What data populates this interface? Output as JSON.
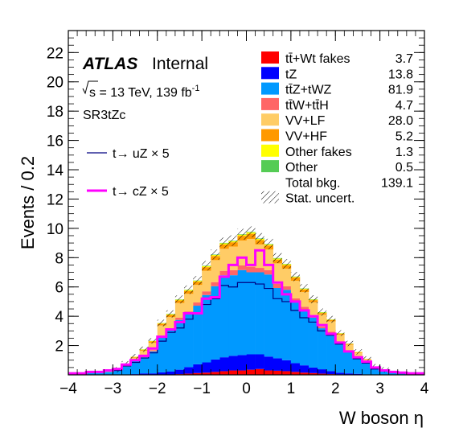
{
  "chart_data": {
    "type": "bar",
    "stacked": true,
    "xlabel": "W boson  η",
    "ylabel": "Events / 0.2",
    "xlim": [
      -4,
      4
    ],
    "ylim": [
      0,
      23.5
    ],
    "x_ticks": [
      "−4",
      "−3",
      "−2",
      "−1",
      "0",
      "1",
      "2",
      "3",
      "4"
    ],
    "y_ticks": [
      "2",
      "4",
      "6",
      "8",
      "10",
      "12",
      "14",
      "16",
      "18",
      "20",
      "22"
    ],
    "bin_edges": [
      -4.0,
      -3.8,
      -3.6,
      -3.4,
      -3.2,
      -3.0,
      -2.8,
      -2.6,
      -2.4,
      -2.2,
      -2.0,
      -1.8,
      -1.6,
      -1.4,
      -1.2,
      -1.0,
      -0.8,
      -0.6,
      -0.4,
      -0.2,
      0.0,
      0.2,
      0.4,
      0.6,
      0.8,
      1.0,
      1.2,
      1.4,
      1.6,
      1.8,
      2.0,
      2.2,
      2.4,
      2.6,
      2.8,
      3.0,
      3.2,
      3.4,
      3.6,
      3.8,
      4.0
    ],
    "series": [
      {
        "name": "tt̄+Wt fakes",
        "color": "#ff0000",
        "yield": "3.7",
        "values": [
          0,
          0,
          0,
          0,
          0,
          0,
          0,
          0,
          0,
          0,
          0.02,
          0.02,
          0.05,
          0.08,
          0.12,
          0.15,
          0.2,
          0.25,
          0.3,
          0.3,
          0.35,
          0.4,
          0.3,
          0.28,
          0.25,
          0.2,
          0.15,
          0.12,
          0.08,
          0.05,
          0.03,
          0.02,
          0.02,
          0,
          0,
          0,
          0,
          0,
          0,
          0
        ]
      },
      {
        "name": "tZ",
        "color": "#0000ff",
        "yield": "13.8",
        "values": [
          0,
          0,
          0,
          0,
          0,
          0,
          0.02,
          0.05,
          0.1,
          0.1,
          0.15,
          0.2,
          0.3,
          0.45,
          0.6,
          0.7,
          0.85,
          0.95,
          1.0,
          1.05,
          1.05,
          1.0,
          0.95,
          0.85,
          0.75,
          0.6,
          0.5,
          0.38,
          0.3,
          0.2,
          0.12,
          0.08,
          0.05,
          0.03,
          0.02,
          0,
          0,
          0,
          0,
          0
        ]
      },
      {
        "name": "tt̄Z+tWZ",
        "color": "#0099ff",
        "yield": "81.9",
        "values": [
          0.1,
          0.08,
          0.12,
          0.15,
          0.2,
          0.3,
          0.55,
          0.9,
          1.1,
          1.5,
          2.4,
          2.8,
          3.4,
          3.6,
          4.0,
          4.6,
          5.0,
          5.6,
          5.5,
          5.8,
          5.6,
          5.6,
          5.6,
          4.8,
          4.8,
          4.2,
          3.8,
          3.4,
          2.8,
          2.6,
          2.0,
          1.5,
          1.1,
          0.8,
          0.4,
          0.3,
          0.15,
          0.12,
          0.08,
          0.1
        ]
      },
      {
        "name": "tt̄W+tt̄H",
        "color": "#ff6666",
        "yield": "4.7",
        "values": [
          0,
          0,
          0,
          0,
          0,
          0,
          0.02,
          0.03,
          0.05,
          0.08,
          0.1,
          0.12,
          0.15,
          0.2,
          0.22,
          0.25,
          0.28,
          0.3,
          0.35,
          0.32,
          0.38,
          0.3,
          0.3,
          0.28,
          0.25,
          0.22,
          0.2,
          0.15,
          0.12,
          0.1,
          0.08,
          0.06,
          0.04,
          0.03,
          0.02,
          0,
          0,
          0,
          0,
          0
        ]
      },
      {
        "name": "VV+LF",
        "color": "#ffcc66",
        "yield": "28.0",
        "values": [
          0.05,
          0.05,
          0.05,
          0.05,
          0.05,
          0.05,
          0.15,
          0.2,
          0.4,
          0.5,
          0.7,
          0.8,
          1.0,
          1.2,
          1.2,
          1.4,
          1.5,
          1.5,
          1.6,
          1.7,
          1.9,
          1.6,
          1.4,
          1.4,
          1.2,
          1.2,
          1.0,
          0.9,
          0.8,
          0.7,
          0.5,
          0.4,
          0.3,
          0.2,
          0.1,
          0.05,
          0.05,
          0.05,
          0.05,
          0.05
        ]
      },
      {
        "name": "VV+HF",
        "color": "#ff9900",
        "yield": "5.2",
        "values": [
          0,
          0,
          0,
          0,
          0,
          0,
          0.02,
          0.04,
          0.06,
          0.1,
          0.12,
          0.15,
          0.18,
          0.2,
          0.22,
          0.25,
          0.28,
          0.3,
          0.3,
          0.32,
          0.35,
          0.3,
          0.28,
          0.26,
          0.24,
          0.22,
          0.18,
          0.15,
          0.12,
          0.1,
          0.08,
          0.05,
          0.04,
          0.03,
          0.02,
          0,
          0,
          0,
          0,
          0
        ]
      },
      {
        "name": "Other fakes",
        "color": "#ffff00",
        "yield": "1.3",
        "values": [
          0,
          0,
          0,
          0,
          0,
          0,
          0,
          0.02,
          0.03,
          0.03,
          0.04,
          0.05,
          0.05,
          0.06,
          0.06,
          0.07,
          0.07,
          0.08,
          0.08,
          0.08,
          0.1,
          0.08,
          0.07,
          0.07,
          0.06,
          0.05,
          0.05,
          0.04,
          0.04,
          0.03,
          0.03,
          0.02,
          0.02,
          0,
          0,
          0,
          0,
          0,
          0,
          0
        ]
      },
      {
        "name": "Other",
        "color": "#55cc55",
        "yield": "0.5",
        "values": [
          0,
          0,
          0,
          0,
          0,
          0,
          0,
          0,
          0.01,
          0.01,
          0.01,
          0.02,
          0.02,
          0.02,
          0.02,
          0.03,
          0.03,
          0.03,
          0.03,
          0.03,
          0.03,
          0.03,
          0.03,
          0.03,
          0.02,
          0.02,
          0.02,
          0.02,
          0.02,
          0.01,
          0.01,
          0.01,
          0,
          0,
          0,
          0,
          0,
          0,
          0,
          0
        ]
      }
    ],
    "signals": [
      {
        "name": "t→ uZ × 5",
        "color": "#000080",
        "width": 1.2,
        "values": [
          0.1,
          0.1,
          0.15,
          0.2,
          0.25,
          0.3,
          0.6,
          0.85,
          1.15,
          1.5,
          2.3,
          2.9,
          3.2,
          3.8,
          4.2,
          4.8,
          5.2,
          6.1,
          6.0,
          6.3,
          6.3,
          6.2,
          5.9,
          5.2,
          5.0,
          4.4,
          3.9,
          3.6,
          3.0,
          2.7,
          2.1,
          1.6,
          1.1,
          0.8,
          0.4,
          0.3,
          0.15,
          0.1,
          0.1,
          0.1
        ]
      },
      {
        "name": "t→ cZ × 5",
        "color": "#ff00ff",
        "width": 3,
        "values": [
          0.1,
          0.1,
          0.2,
          0.2,
          0.3,
          0.4,
          0.7,
          1.0,
          1.3,
          1.8,
          2.6,
          3.1,
          3.6,
          4.2,
          4.2,
          5.2,
          5.3,
          6.7,
          7.5,
          8.0,
          7.5,
          8.5,
          7.5,
          6.3,
          5.5,
          5.0,
          4.4,
          4.0,
          3.4,
          2.8,
          2.2,
          1.6,
          1.2,
          0.9,
          0.5,
          0.3,
          0.2,
          0.15,
          0.1,
          0.1
        ]
      }
    ],
    "total_bkg_label": "Total bkg.",
    "total_bkg_yield": "139.1",
    "stat_uncert_label": "Stat. uncert.",
    "legend_position": "top-right"
  },
  "labels": {
    "atlas": "ATLAS",
    "internal": "Internal",
    "energy_prefix": "s",
    "energy_rest": " = 13 TeV, 139 fb",
    "energy_sup": "-1",
    "region": "SR3tZc"
  }
}
